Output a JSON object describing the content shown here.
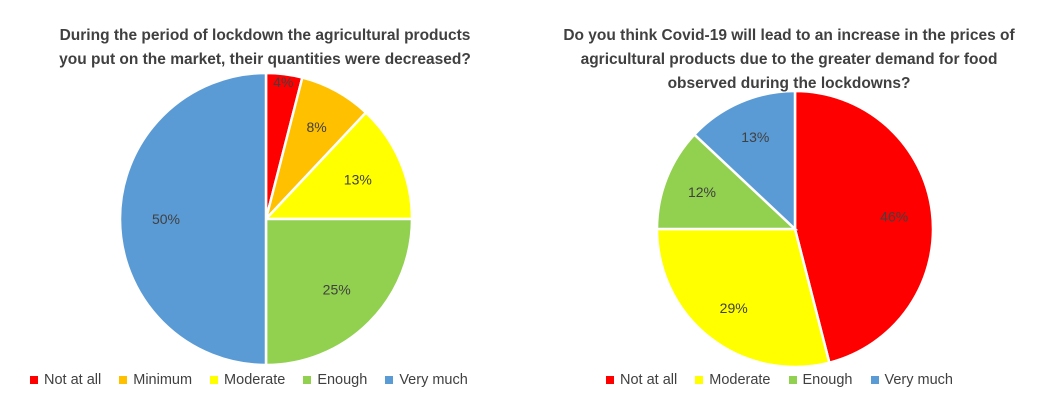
{
  "chart_data": [
    {
      "type": "pie",
      "title_lines": [
        "During the period of lockdown the agricultural products",
        "you put on the market, their quantities were decreased?"
      ],
      "categories": [
        "Not at all",
        "Minimum",
        "Moderate",
        "Enough",
        "Very much"
      ],
      "values": [
        4,
        8,
        13,
        25,
        50
      ],
      "labels": [
        "4%",
        "8%",
        "13%",
        "25%",
        "50%"
      ],
      "colors": [
        "#ff0000",
        "#ffc000",
        "#ffff00",
        "#92d050",
        "#5b9bd5"
      ],
      "legend_position": "bottom"
    },
    {
      "type": "pie",
      "title_lines": [
        "Do you think Covid-19 will lead to an increase in the prices of",
        "agricultural products due to the greater demand for food",
        "observed during the lockdowns?"
      ],
      "categories": [
        "Not at all",
        "Moderate",
        "Enough",
        "Very much"
      ],
      "values": [
        46,
        29,
        12,
        13
      ],
      "labels": [
        "46%",
        "29%",
        "12%",
        "13%"
      ],
      "colors": [
        "#ff0000",
        "#ffff00",
        "#92d050",
        "#5b9bd5"
      ],
      "legend_position": "bottom"
    }
  ]
}
